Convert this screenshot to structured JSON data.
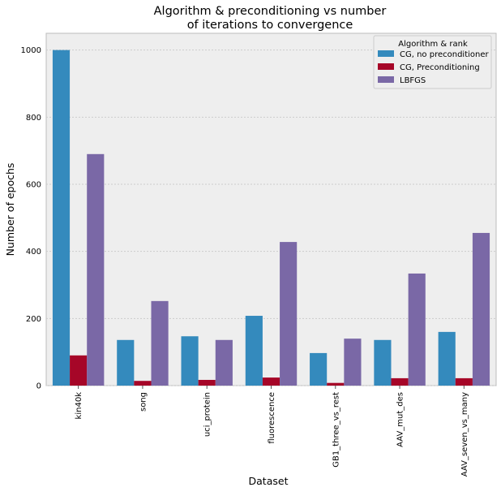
{
  "chart_data": {
    "type": "bar",
    "title_line1": "Algorithm & preconditioning vs number",
    "title_line2": "of iterations to convergence",
    "xlabel": "Dataset",
    "ylabel": "Number of epochs",
    "ylim": [
      0,
      1050
    ],
    "yticks": [
      0,
      200,
      400,
      600,
      800,
      1000
    ],
    "grid": true,
    "legend_position": "top-right",
    "legend_title": "Algorithm & rank",
    "categories": [
      "kin40k",
      "song",
      "uci_protein",
      "fluorescence",
      "GB1_three_vs_rest",
      "AAV_mut_des",
      "AAV_seven_vs_many"
    ],
    "series": [
      {
        "name": "CG, no preconditioner",
        "color": "#348abd",
        "values": [
          1000,
          136,
          147,
          208,
          97,
          136,
          160
        ]
      },
      {
        "name": "CG, Preconditioning",
        "color": "#a60628",
        "values": [
          90,
          14,
          17,
          24,
          8,
          22,
          22
        ]
      },
      {
        "name": "LBFGS",
        "color": "#7a68a6",
        "values": [
          690,
          252,
          136,
          428,
          140,
          334,
          455
        ]
      }
    ],
    "background_color": "#eeeeee",
    "grid_color": "#cccccc"
  }
}
